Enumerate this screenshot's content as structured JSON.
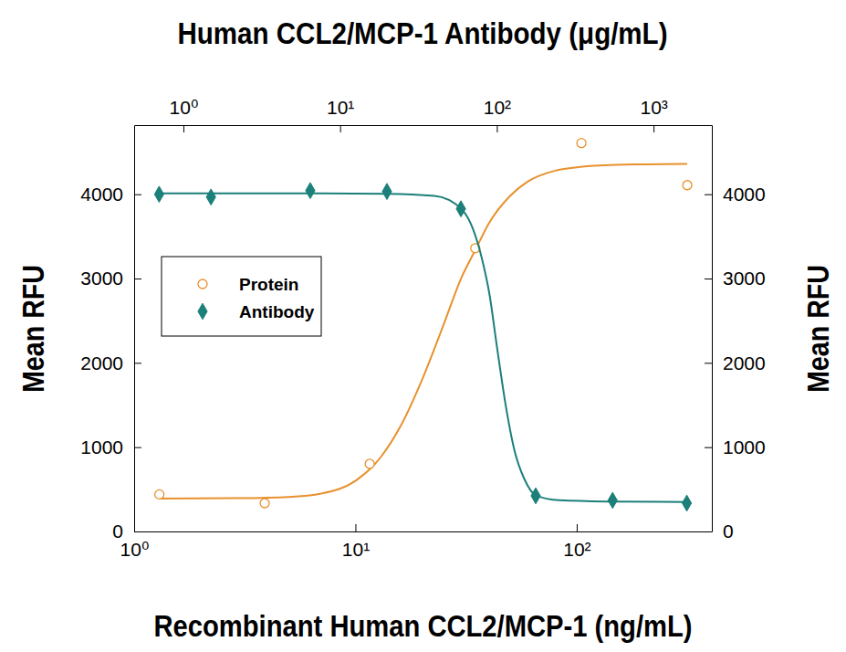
{
  "chart_data": {
    "type": "scatter",
    "log": "x",
    "x_label": "Recombinant Human CCL2/MCP-1 (ng/mL)",
    "x2_label": "Human CCL2/MCP-1 Antibody (μg/mL)",
    "y_label": "Mean RFU",
    "y2_label": "Mean RFU",
    "xlim": [
      1,
      408
    ],
    "xticks": [
      {
        "value": 1,
        "label": "10⁰"
      },
      {
        "value": 10,
        "label": "10¹"
      },
      {
        "value": 100,
        "label": "10²"
      }
    ],
    "x2lim": [
      0.485,
      2355
    ],
    "x2ticks": [
      {
        "value": 1,
        "label": "10⁰"
      },
      {
        "value": 10,
        "label": "10¹"
      },
      {
        "value": 100,
        "label": "10²"
      },
      {
        "value": 1000,
        "label": "10³"
      }
    ],
    "ylim": [
      0,
      4820
    ],
    "yticks": [
      0,
      1000,
      2000,
      3000,
      4000
    ],
    "y2lim": [
      0,
      4820
    ],
    "y2ticks": [
      0,
      1000,
      2000,
      3000,
      4000
    ],
    "legend": "left",
    "series": [
      {
        "name": "Protein",
        "color": "#e8912d",
        "marker": "circle",
        "x": [
          1.3,
          3.89,
          11.6,
          34.8,
          105,
          316
        ],
        "values": [
          440,
          336,
          802,
          3360,
          4607,
          4108
        ],
        "curve": {
          "x": [
            1.3,
            3,
            5,
            7,
            10,
            13,
            16,
            20,
            25,
            30,
            35,
            40,
            50,
            60,
            80,
            100,
            150,
            200,
            316
          ],
          "values": [
            390,
            395,
            410,
            450,
            600,
            880,
            1250,
            1800,
            2450,
            3000,
            3350,
            3650,
            3980,
            4150,
            4280,
            4320,
            4350,
            4355,
            4360
          ]
        }
      },
      {
        "name": "Antibody",
        "color": "#1b7f7a",
        "marker": "diamond",
        "axis": "x2",
        "x": [
          0.7,
          1.5,
          6.45,
          19.9,
          59,
          177,
          548,
          1630
        ],
        "values": [
          4000,
          3967,
          4043,
          4033,
          3827,
          423,
          369,
          336
        ],
        "curve": {
          "x": [
            0.7,
            5,
            20,
            40,
            59,
            70,
            80,
            90,
            100,
            115,
            130,
            150,
            177,
            250,
            500,
            1630
          ],
          "values": [
            4010,
            4010,
            4005,
            3980,
            3830,
            3600,
            3250,
            2800,
            2200,
            1450,
            950,
            620,
            430,
            370,
            355,
            350
          ]
        }
      }
    ]
  }
}
